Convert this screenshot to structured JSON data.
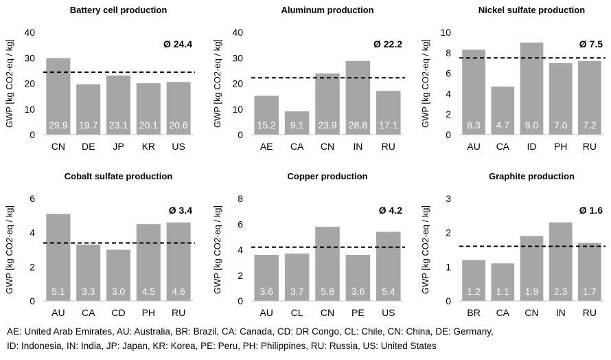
{
  "chart_data": [
    {
      "type": "bar",
      "title": "Battery cell production",
      "ylabel": "GWP [kg CO2-eq / kg]",
      "categories": [
        "CN",
        "DE",
        "JP",
        "KR",
        "US"
      ],
      "values": [
        29.9,
        19.7,
        23.1,
        20.1,
        20.6
      ],
      "value_labels": [
        "29.9",
        "19.7",
        "23.1",
        "20.1",
        "20.6"
      ],
      "ylim": [
        0,
        40
      ],
      "yticks": [
        0,
        10,
        20,
        30,
        40
      ],
      "average": 24.4,
      "average_label": "Ø 24.4"
    },
    {
      "type": "bar",
      "title": "Aluminum production",
      "ylabel": "GWP [kg CO2-eq / kg]",
      "categories": [
        "AE",
        "CA",
        "CN",
        "IN",
        "RU"
      ],
      "values": [
        15.2,
        9.1,
        23.9,
        28.8,
        17.1
      ],
      "value_labels": [
        "15.2",
        "9.1",
        "23.9",
        "28.8",
        "17.1"
      ],
      "ylim": [
        0,
        40
      ],
      "yticks": [
        0,
        10,
        20,
        30,
        40
      ],
      "average": 22.2,
      "average_label": "Ø 22.2"
    },
    {
      "type": "bar",
      "title": "Nickel sulfate production",
      "ylabel": "GWP [kg CO2-eq / kg]",
      "categories": [
        "AU",
        "CA",
        "ID",
        "PH",
        "RU"
      ],
      "values": [
        8.3,
        4.7,
        9.0,
        7.0,
        7.2
      ],
      "value_labels": [
        "8.3",
        "4.7",
        "9.0",
        "7.0",
        "7.2"
      ],
      "ylim": [
        0,
        10
      ],
      "yticks": [
        0,
        2,
        4,
        6,
        8,
        10
      ],
      "average": 7.5,
      "average_label": "Ø 7.5"
    },
    {
      "type": "bar",
      "title": "Cobalt sulfate production",
      "ylabel": "GWP [kg CO2-eq / kg]",
      "categories": [
        "AU",
        "CA",
        "CD",
        "PH",
        "RU"
      ],
      "values": [
        5.1,
        3.3,
        3.0,
        4.5,
        4.6
      ],
      "value_labels": [
        "5.1",
        "3.3",
        "3.0",
        "4.5",
        "4.6"
      ],
      "ylim": [
        0,
        6
      ],
      "yticks": [
        0,
        2,
        4,
        6
      ],
      "average": 3.4,
      "average_label": "Ø 3.4"
    },
    {
      "type": "bar",
      "title": "Copper production",
      "ylabel": "GWP [kg CO2-eq / kg]",
      "categories": [
        "AU",
        "CL",
        "CN",
        "PE",
        "US"
      ],
      "values": [
        3.6,
        3.7,
        5.8,
        3.6,
        5.4
      ],
      "value_labels": [
        "3.6",
        "3.7",
        "5.8",
        "3.6",
        "5.4"
      ],
      "ylim": [
        0,
        8
      ],
      "yticks": [
        0,
        2,
        4,
        6,
        8
      ],
      "average": 4.2,
      "average_label": "Ø 4.2"
    },
    {
      "type": "bar",
      "title": "Graphite production",
      "ylabel": "GWP [kg CO2-eq / kg]",
      "categories": [
        "BR",
        "CA",
        "CN",
        "IN",
        "RU"
      ],
      "values": [
        1.2,
        1.1,
        1.9,
        2.3,
        1.7
      ],
      "value_labels": [
        "1.2",
        "1.1",
        "1.9",
        "2.3",
        "1.7"
      ],
      "ylim": [
        0,
        3
      ],
      "yticks": [
        0,
        1,
        2,
        3
      ],
      "average": 1.6,
      "average_label": "Ø 1.6"
    }
  ],
  "colors": {
    "bar": "#a6a6a6",
    "bar_label": "#ffffff",
    "average_line": "#000000",
    "axis": "#bfbfbf"
  },
  "footnote": {
    "line1": "AE: United Arab Emirates, AU: Australia, BR: Brazil, CA: Canada, CD: DR Congo, CL: Chile, CN: China, DE: Germany,",
    "line2": "ID: Indonesia, IN: India, JP: Japan, KR: Korea, PE: Peru, PH: Philippines, RU: Russia, US: United States"
  }
}
